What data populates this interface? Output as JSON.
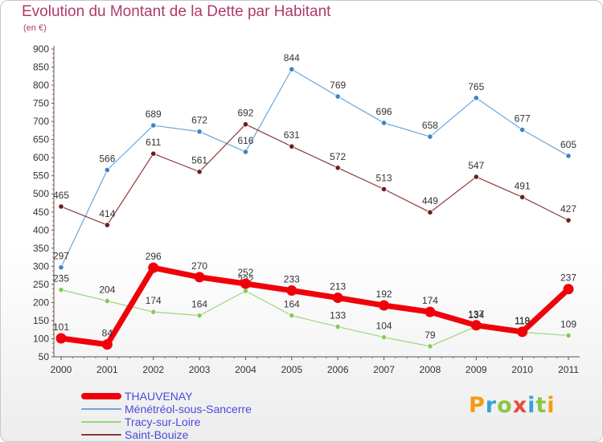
{
  "header": {
    "title": "Evolution du Montant de la Dette par Habitant",
    "subtitle": "(en €)"
  },
  "chart_data": {
    "type": "line",
    "title": "Evolution du Montant de la Dette par Habitant",
    "subtitle": "(en €)",
    "xlabel": "",
    "ylabel": "",
    "x": [
      "2000",
      "2001",
      "2002",
      "2003",
      "2004",
      "2005",
      "2006",
      "2007",
      "2008",
      "2009",
      "2010",
      "2011"
    ],
    "y_ticks": [
      "50",
      "100",
      "150",
      "200",
      "250",
      "300",
      "350",
      "400",
      "450",
      "500",
      "550",
      "600",
      "650",
      "700",
      "750",
      "800",
      "850",
      "900"
    ],
    "ylim": [
      50,
      900
    ],
    "grid": false,
    "legend_position": "bottom-left",
    "series": [
      {
        "name": "Ménétréol-sous-Sancerre",
        "color": "#6aa6d9",
        "marker": "#3d84c6",
        "width": 1.2,
        "radius": 3.2,
        "values": [
          297,
          566,
          689,
          672,
          616,
          844,
          769,
          696,
          658,
          765,
          677,
          605
        ],
        "labels": [
          "297",
          "566",
          "689",
          "672",
          "616",
          "844",
          "769",
          "696",
          "658",
          "765",
          "677",
          "605"
        ]
      },
      {
        "name": "Saint-Bouize",
        "color": "#8b3a3a",
        "marker": "#6e1d1d",
        "width": 1.2,
        "radius": 3.2,
        "values": [
          465,
          414,
          611,
          561,
          692,
          631,
          572,
          513,
          449,
          547,
          491,
          427
        ],
        "labels": [
          "465",
          "414",
          "611",
          "561",
          "692",
          "631",
          "572",
          "513",
          "449",
          "547",
          "491",
          "427"
        ]
      },
      {
        "name": "Tracy-sur-Loire",
        "color": "#9ad77a",
        "marker": "#84cc5a",
        "width": 1.2,
        "radius": 3.2,
        "values": [
          235,
          204,
          174,
          164,
          232,
          164,
          133,
          104,
          79,
          134,
          118,
          109
        ],
        "labels": [
          "235",
          "204",
          "174",
          "164",
          "232",
          "164",
          "133",
          "104",
          "79",
          "134",
          "118",
          "109"
        ]
      },
      {
        "name": "THAUVENAY",
        "color": "#f0000a",
        "marker": "#f0000a",
        "width": 7,
        "radius": 6.5,
        "values": [
          101,
          84,
          296,
          270,
          252,
          233,
          213,
          192,
          174,
          137,
          119,
          237
        ],
        "labels": [
          "101",
          "84",
          "296",
          "270",
          "252",
          "233",
          "213",
          "192",
          "174",
          "137",
          "119",
          "237"
        ]
      }
    ],
    "legend": [
      {
        "name": "THAUVENAY",
        "color": "#f0000a",
        "thickness": 8
      },
      {
        "name": "Ménétréol-sous-Sancerre",
        "color": "#6aa6d9",
        "thickness": 2
      },
      {
        "name": "Tracy-sur-Loire",
        "color": "#9ad77a",
        "thickness": 2
      },
      {
        "name": "Saint-Bouize",
        "color": "#8b3a3a",
        "thickness": 2
      }
    ]
  },
  "logo": {
    "text": "Proxiti",
    "letters": [
      {
        "ch": "P",
        "color": "#f39c12"
      },
      {
        "ch": "r",
        "color": "#3aa0dc"
      },
      {
        "ch": "o",
        "color": "#8cc63f"
      },
      {
        "ch": "x",
        "color": "#e74c3c"
      },
      {
        "ch": "i",
        "color": "#3aa0dc"
      },
      {
        "ch": "t",
        "color": "#8cc63f"
      },
      {
        "ch": "i",
        "color": "#f39c12"
      }
    ]
  }
}
